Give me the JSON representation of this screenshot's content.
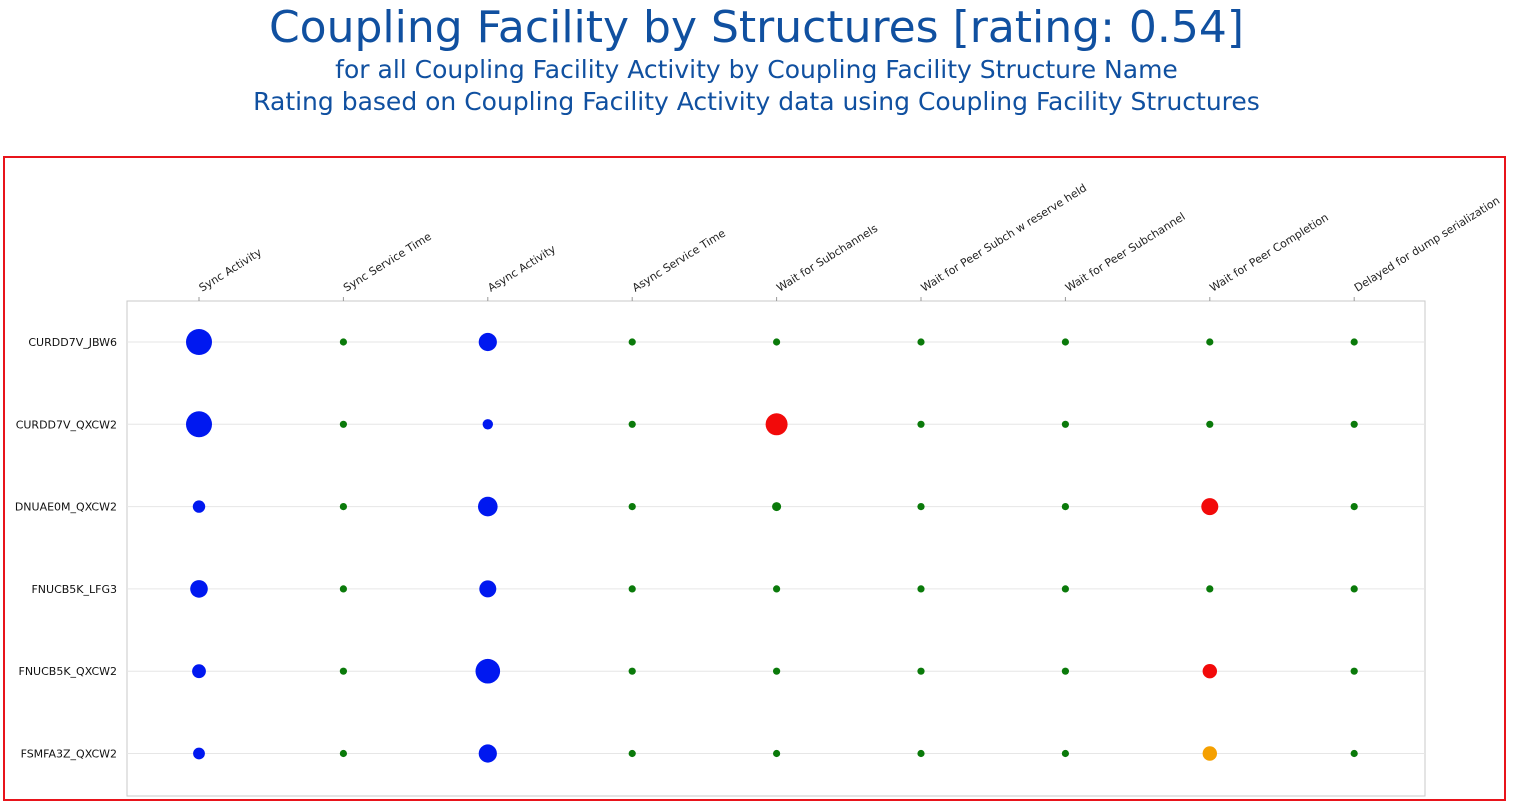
{
  "header": {
    "title": "Coupling Facility by Structures [rating: 0.54]",
    "subtitle1": "for all Coupling Facility Activity by Coupling Facility Structure Name",
    "subtitle2": "Rating based on Coupling Facility Activity data using Coupling Facility Structures"
  },
  "colors": {
    "title": "#1050a0",
    "frame": "#e8141b",
    "blue": "#0018f0",
    "green": "#0a7a0a",
    "red": "#f20a0a",
    "orange": "#f5a000"
  },
  "chart_data": {
    "type": "scatter",
    "grid": "horizontal row lines",
    "columns": [
      "Sync Activity",
      "Sync Service Time",
      "Async Activity",
      "Async Service Time",
      "Wait for Subchannels",
      "Wait for Peer Subch w reserve held",
      "Wait for Peer Subchannel",
      "Wait for Peer Completion",
      "Delayed for dump serialization"
    ],
    "rows": [
      "CURDD7V_JBW6",
      "CURDD7V_QXCW2",
      "DNUAE0M_QXCW2",
      "FNUCB5K_LFG3",
      "FNUCB5K_QXCW2",
      "FSMFA3Z_QXCW2"
    ],
    "bubble_size": [
      [
        1.0,
        0.3,
        0.7,
        0.3,
        0.3,
        0.3,
        0.3,
        0.3,
        0.3
      ],
      [
        1.0,
        0.3,
        0.4,
        0.3,
        0.85,
        0.3,
        0.3,
        0.3,
        0.3
      ],
      [
        0.48,
        0.3,
        0.75,
        0.3,
        0.35,
        0.3,
        0.3,
        0.65,
        0.3
      ],
      [
        0.68,
        0.3,
        0.65,
        0.3,
        0.3,
        0.3,
        0.3,
        0.3,
        0.3
      ],
      [
        0.53,
        0.3,
        0.95,
        0.3,
        0.3,
        0.3,
        0.3,
        0.55,
        0.3
      ],
      [
        0.45,
        0.3,
        0.7,
        0.3,
        0.3,
        0.3,
        0.3,
        0.55,
        0.3
      ]
    ],
    "bubble_color": [
      [
        "blue",
        "green",
        "blue",
        "green",
        "green",
        "green",
        "green",
        "green",
        "green"
      ],
      [
        "blue",
        "green",
        "blue",
        "green",
        "red",
        "green",
        "green",
        "green",
        "green"
      ],
      [
        "blue",
        "green",
        "blue",
        "green",
        "green",
        "green",
        "green",
        "red",
        "green"
      ],
      [
        "blue",
        "green",
        "blue",
        "green",
        "green",
        "green",
        "green",
        "green",
        "green"
      ],
      [
        "blue",
        "green",
        "blue",
        "green",
        "green",
        "green",
        "green",
        "red",
        "green"
      ],
      [
        "blue",
        "green",
        "blue",
        "green",
        "green",
        "green",
        "green",
        "orange",
        "green"
      ]
    ]
  }
}
